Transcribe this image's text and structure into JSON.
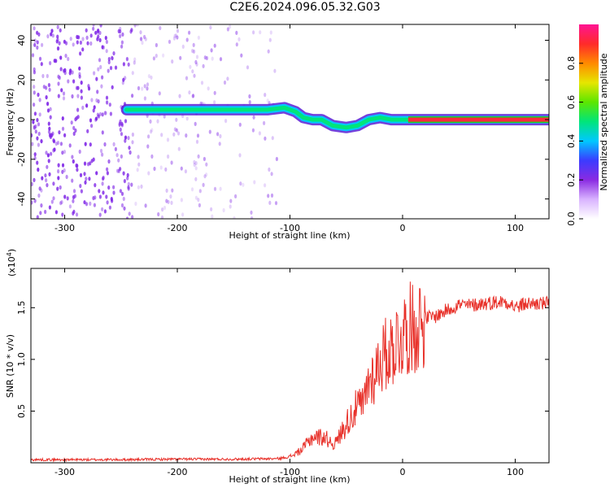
{
  "title": "C2E6.2024.096.05.32.G03",
  "colors": {
    "snr_line": "#e8312a",
    "band": "#ff2a3c",
    "band_edge": "#22cc22",
    "scatter": "#7b1fe6"
  },
  "colorbar": {
    "label": "Normalized spectral amplitude",
    "ticks": [
      "0.0",
      "0.2",
      "0.4",
      "0.6",
      "0.8"
    ],
    "range": [
      0,
      1
    ],
    "colormap": [
      "#ffffff",
      "#d9b3ff",
      "#8a2be2",
      "#3b3bff",
      "#00c8ff",
      "#00e57a",
      "#5ce600",
      "#e6e600",
      "#ff8a00",
      "#ff2a2a",
      "#ff1493"
    ]
  },
  "chart_data": [
    {
      "type": "heatmap",
      "title": "",
      "xlabel": "Height of straight line (km)",
      "ylabel": "Frequency (Hz)",
      "xlim": [
        -330,
        130
      ],
      "ylim": [
        -50,
        48
      ],
      "xticks": [
        "-300",
        "-200",
        "-100",
        "0",
        "100"
      ],
      "yticks": [
        "-40",
        "-20",
        "0",
        "20",
        "40"
      ],
      "ridge": {
        "x": [
          -245,
          -225,
          -200,
          -180,
          -160,
          -140,
          -120,
          -105,
          -95,
          -88,
          -80,
          -72,
          -62,
          -50,
          -40,
          -30,
          -20,
          -10,
          -3,
          5,
          15,
          40,
          70,
          90,
          130
        ],
        "y": [
          5,
          5,
          5,
          5,
          5,
          5,
          5,
          6,
          4,
          1,
          0,
          0,
          -3,
          -4,
          -3,
          0,
          1,
          0,
          0,
          0,
          0,
          0,
          0,
          0,
          0
        ]
      },
      "scatter_region_x": [
        -330,
        -110
      ]
    },
    {
      "type": "line",
      "title": "",
      "xlabel": "Height of straight line (km)",
      "ylabel": "SNR (10 * v/v)",
      "y_scale_label": "(x10",
      "y_scale_exp": "4",
      "y_scale_close": ")",
      "xlim": [
        -330,
        130
      ],
      "ylim": [
        0,
        18800
      ],
      "xticks": [
        "-300",
        "-200",
        "-100",
        "0",
        "100"
      ],
      "yticks": [
        "0.5",
        "1.0",
        "1.5"
      ],
      "series": [
        {
          "x": [
            -330,
            -300,
            -250,
            -200,
            -150,
            -110,
            -100,
            -90,
            -80,
            -70,
            -60,
            -50,
            -40,
            -35,
            -30,
            -25,
            -20,
            -15,
            -10,
            -5,
            0,
            5,
            10,
            15,
            20,
            30,
            40,
            50,
            60,
            70,
            80,
            90,
            95,
            100,
            110,
            120,
            130
          ],
          "y": [
            300,
            300,
            300,
            350,
            350,
            400,
            600,
            1200,
            2500,
            2500,
            1800,
            3800,
            5500,
            5500,
            8000,
            8500,
            10000,
            10500,
            11000,
            11800,
            12300,
            13000,
            13000,
            13600,
            14000,
            14200,
            14800,
            15300,
            15200,
            15400,
            15500,
            15600,
            15500,
            15000,
            15400,
            15400,
            15400
          ]
        }
      ]
    }
  ]
}
